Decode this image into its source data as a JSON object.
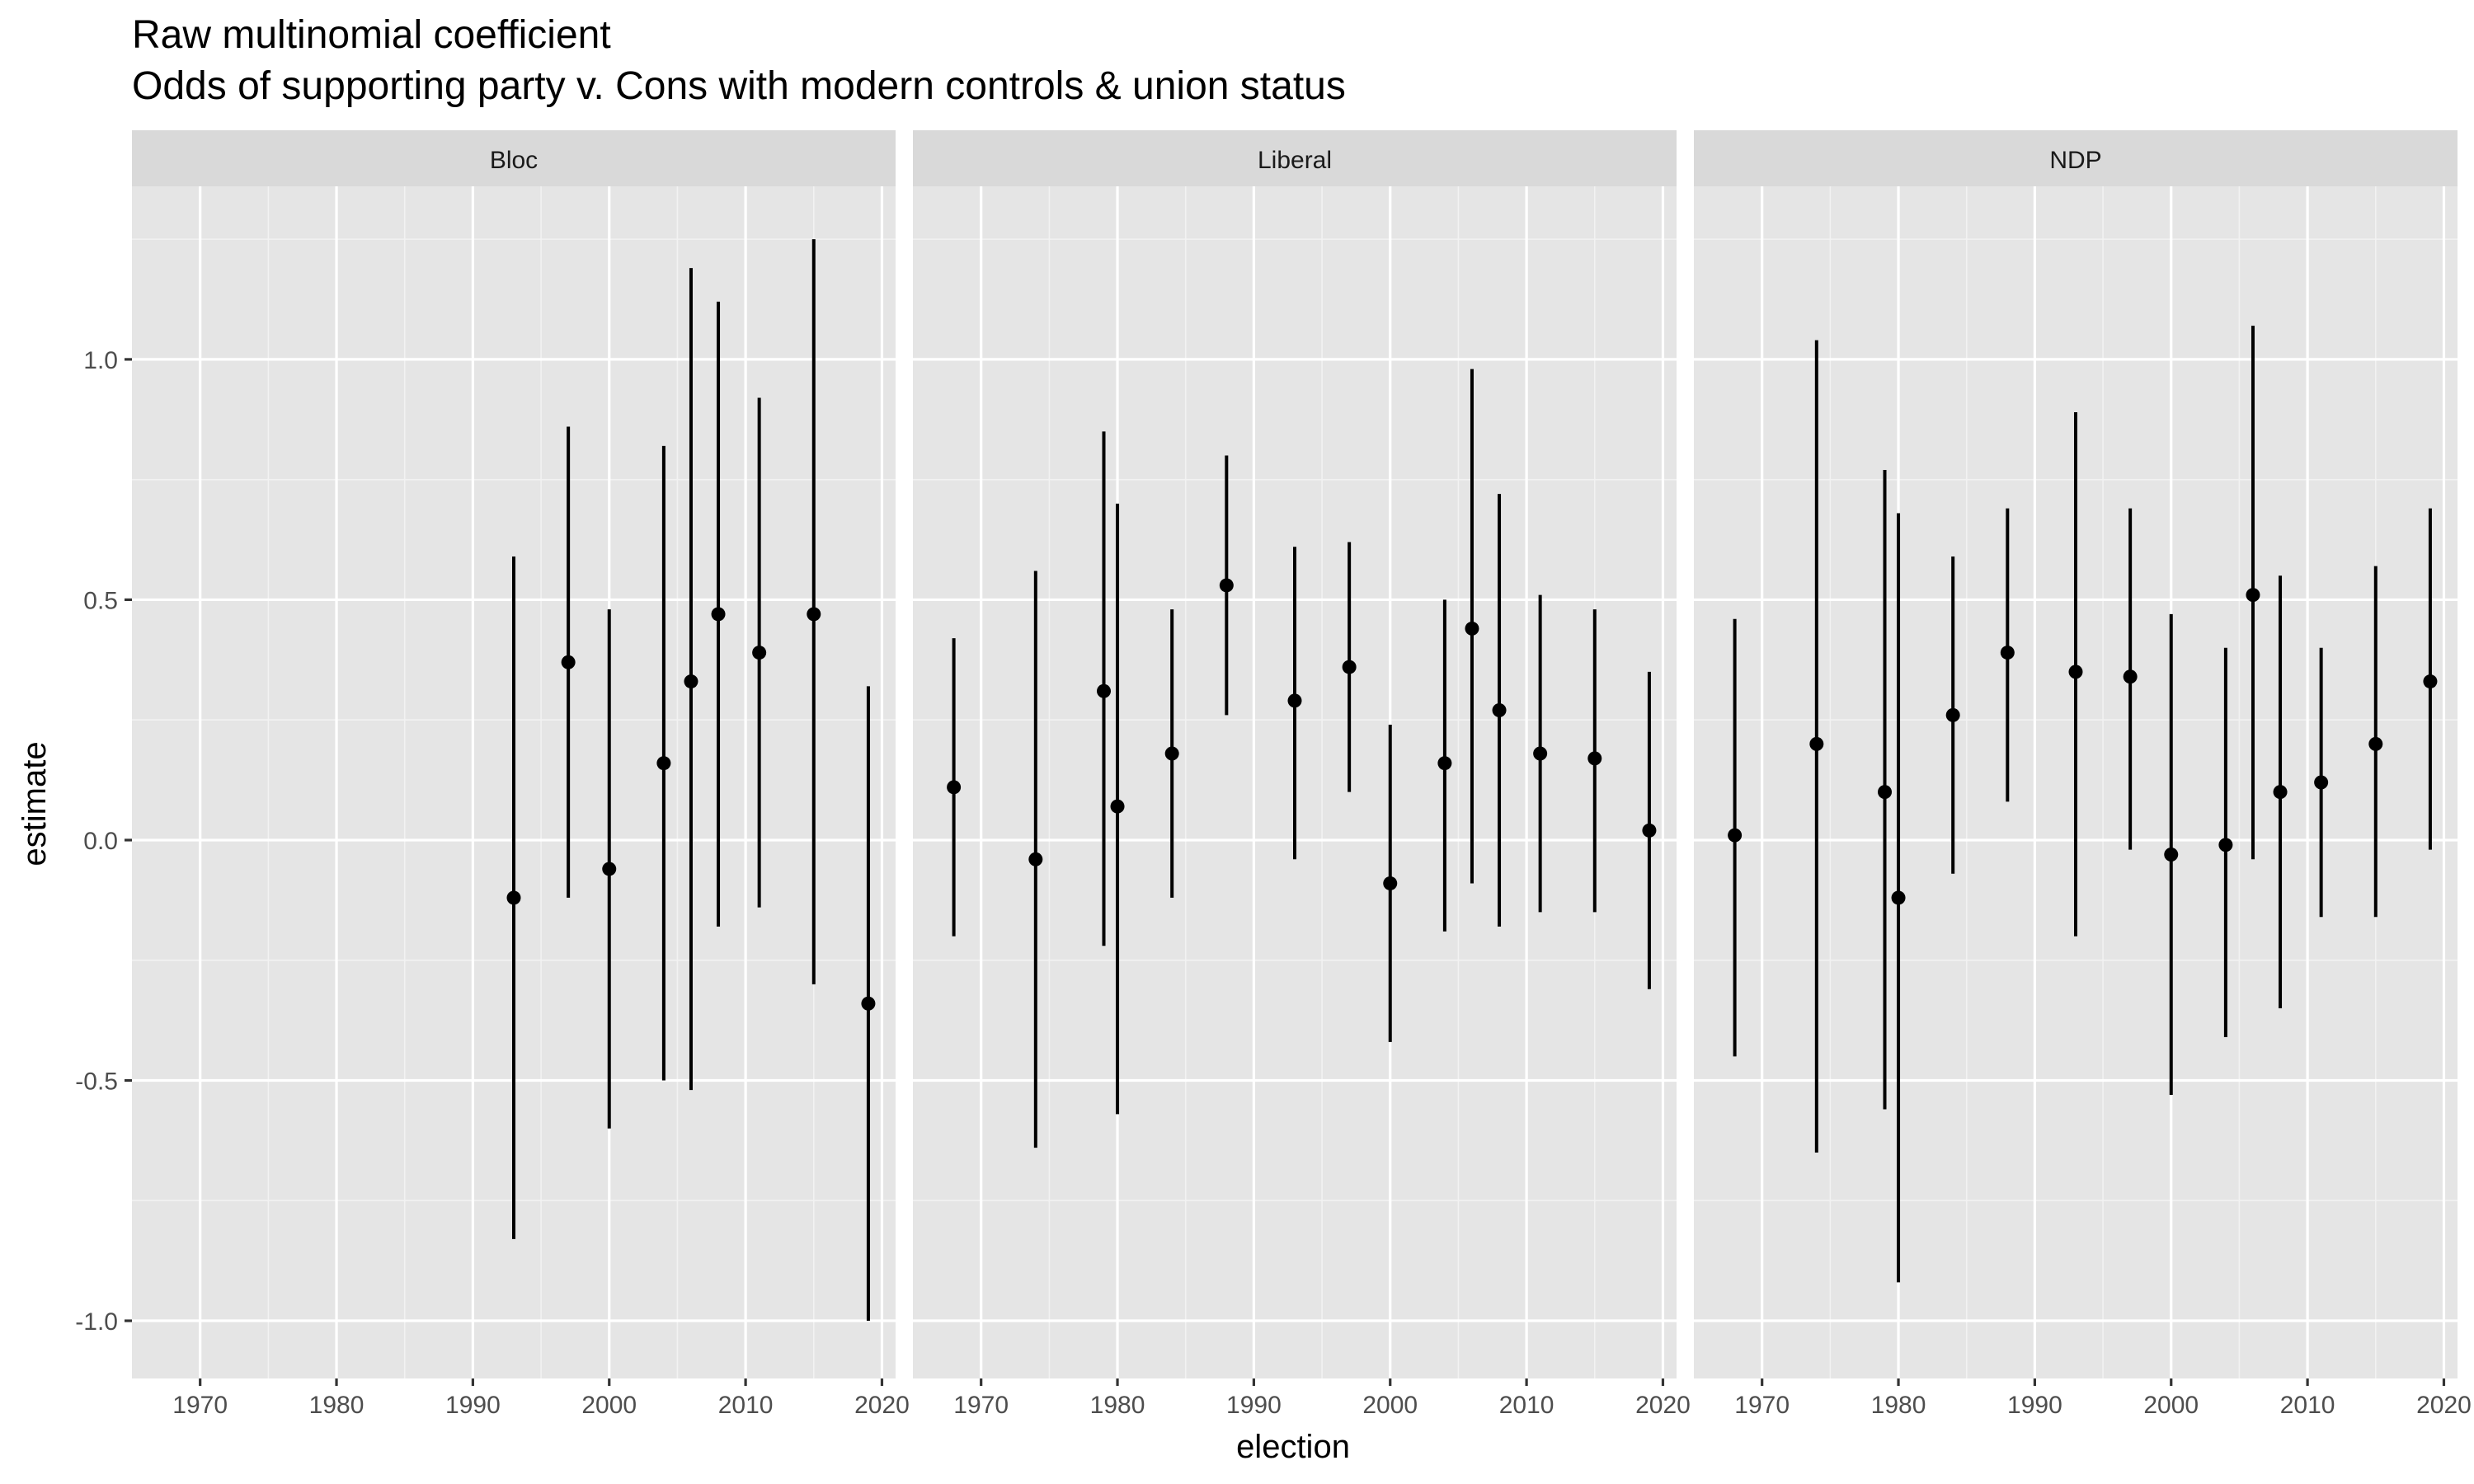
{
  "chart_data": {
    "type": "scatter",
    "title": "Raw multinomial coefficient",
    "subtitle": "Odds of supporting party v. Cons with modern controls & union status",
    "xlabel": "election",
    "ylabel": "estimate",
    "xlim": [
      1965,
      2021
    ],
    "ylim": [
      -1.12,
      1.36
    ],
    "x_ticks": [
      1970,
      1980,
      1990,
      2000,
      2010,
      2020
    ],
    "y_ticks": [
      -1.0,
      -0.5,
      0.0,
      0.5,
      1.0
    ],
    "y_tick_labels": [
      "-1.0",
      "-0.5",
      "0.0",
      "0.5",
      "1.0"
    ],
    "grid": true,
    "panel_background": "#e5e5e5",
    "strip_background": "#d9d9d9",
    "point_color": "#000000",
    "panels": [
      {
        "name": "Bloc",
        "points": [
          {
            "x": 1993,
            "y": -0.12,
            "ymin": -0.83,
            "ymax": 0.59
          },
          {
            "x": 1997,
            "y": 0.37,
            "ymin": -0.12,
            "ymax": 0.86
          },
          {
            "x": 2000,
            "y": -0.06,
            "ymin": -0.6,
            "ymax": 0.48
          },
          {
            "x": 2004,
            "y": 0.16,
            "ymin": -0.5,
            "ymax": 0.82
          },
          {
            "x": 2006,
            "y": 0.33,
            "ymin": -0.52,
            "ymax": 1.19
          },
          {
            "x": 2008,
            "y": 0.47,
            "ymin": -0.18,
            "ymax": 1.12
          },
          {
            "x": 2011,
            "y": 0.39,
            "ymin": -0.14,
            "ymax": 0.92
          },
          {
            "x": 2015,
            "y": 0.47,
            "ymin": -0.3,
            "ymax": 1.25
          },
          {
            "x": 2019,
            "y": -0.34,
            "ymin": -1.0,
            "ymax": 0.32
          }
        ]
      },
      {
        "name": "Liberal",
        "points": [
          {
            "x": 1968,
            "y": 0.11,
            "ymin": -0.2,
            "ymax": 0.42
          },
          {
            "x": 1974,
            "y": -0.04,
            "ymin": -0.64,
            "ymax": 0.56
          },
          {
            "x": 1979,
            "y": 0.31,
            "ymin": -0.22,
            "ymax": 0.85
          },
          {
            "x": 1980,
            "y": 0.07,
            "ymin": -0.57,
            "ymax": 0.7
          },
          {
            "x": 1984,
            "y": 0.18,
            "ymin": -0.12,
            "ymax": 0.48
          },
          {
            "x": 1988,
            "y": 0.53,
            "ymin": 0.26,
            "ymax": 0.8
          },
          {
            "x": 1993,
            "y": 0.29,
            "ymin": -0.04,
            "ymax": 0.61
          },
          {
            "x": 1997,
            "y": 0.36,
            "ymin": 0.1,
            "ymax": 0.62
          },
          {
            "x": 2000,
            "y": -0.09,
            "ymin": -0.42,
            "ymax": 0.24
          },
          {
            "x": 2004,
            "y": 0.16,
            "ymin": -0.19,
            "ymax": 0.5
          },
          {
            "x": 2006,
            "y": 0.44,
            "ymin": -0.09,
            "ymax": 0.98
          },
          {
            "x": 2008,
            "y": 0.27,
            "ymin": -0.18,
            "ymax": 0.72
          },
          {
            "x": 2011,
            "y": 0.18,
            "ymin": -0.15,
            "ymax": 0.51
          },
          {
            "x": 2015,
            "y": 0.17,
            "ymin": -0.15,
            "ymax": 0.48
          },
          {
            "x": 2019,
            "y": 0.02,
            "ymin": -0.31,
            "ymax": 0.35
          }
        ]
      },
      {
        "name": "NDP",
        "points": [
          {
            "x": 1968,
            "y": 0.01,
            "ymin": -0.45,
            "ymax": 0.46
          },
          {
            "x": 1974,
            "y": 0.2,
            "ymin": -0.65,
            "ymax": 1.04
          },
          {
            "x": 1979,
            "y": 0.1,
            "ymin": -0.56,
            "ymax": 0.77
          },
          {
            "x": 1980,
            "y": -0.12,
            "ymin": -0.92,
            "ymax": 0.68
          },
          {
            "x": 1984,
            "y": 0.26,
            "ymin": -0.07,
            "ymax": 0.59
          },
          {
            "x": 1988,
            "y": 0.39,
            "ymin": 0.08,
            "ymax": 0.69
          },
          {
            "x": 1993,
            "y": 0.35,
            "ymin": -0.2,
            "ymax": 0.89
          },
          {
            "x": 1997,
            "y": 0.34,
            "ymin": -0.02,
            "ymax": 0.69
          },
          {
            "x": 2000,
            "y": -0.03,
            "ymin": -0.53,
            "ymax": 0.47
          },
          {
            "x": 2004,
            "y": -0.01,
            "ymin": -0.41,
            "ymax": 0.4
          },
          {
            "x": 2006,
            "y": 0.51,
            "ymin": -0.04,
            "ymax": 1.07
          },
          {
            "x": 2008,
            "y": 0.1,
            "ymin": -0.35,
            "ymax": 0.55
          },
          {
            "x": 2011,
            "y": 0.12,
            "ymin": -0.16,
            "ymax": 0.4
          },
          {
            "x": 2015,
            "y": 0.2,
            "ymin": -0.16,
            "ymax": 0.57
          },
          {
            "x": 2019,
            "y": 0.33,
            "ymin": -0.02,
            "ymax": 0.69
          }
        ]
      }
    ]
  }
}
